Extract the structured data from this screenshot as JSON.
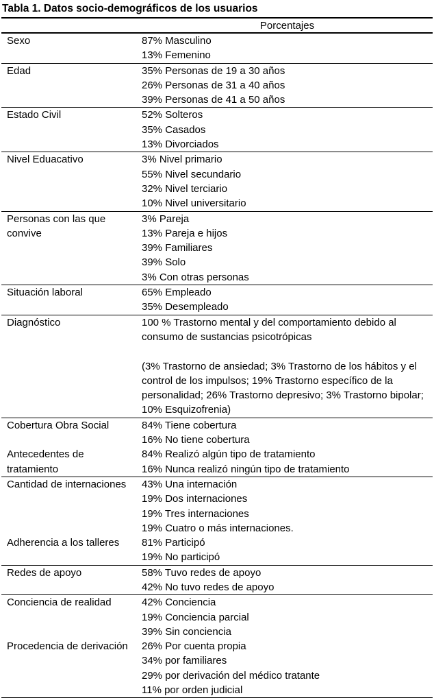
{
  "title": "Tabla 1. Datos socio-demográficos de los usuarios",
  "table": {
    "header": {
      "label": "",
      "value": "Porcentajes"
    },
    "sections": [
      {
        "groups": [
          {
            "label": "Sexo",
            "values": [
              "87% Masculino",
              "13% Femenino"
            ]
          }
        ]
      },
      {
        "groups": [
          {
            "label": "Edad",
            "values": [
              "35% Personas de 19 a 30 años",
              "26% Personas de 31 a 40 años",
              "39% Personas de 41 a 50 años"
            ]
          }
        ]
      },
      {
        "groups": [
          {
            "label": "Estado Civil",
            "values": [
              "52% Solteros",
              "35% Casados",
              "13% Divorciados"
            ]
          }
        ]
      },
      {
        "groups": [
          {
            "label": "Nivel Eduacativo",
            "values": [
              "3% Nivel primario",
              "55% Nivel secundario",
              "32% Nivel terciario",
              "10% Nivel universitario"
            ]
          }
        ]
      },
      {
        "groups": [
          {
            "label": "Personas con las que convive",
            "values": [
              "3% Pareja",
              "13% Pareja e hijos",
              "39% Familiares",
              "39% Solo",
              "3% Con otras personas"
            ]
          }
        ]
      },
      {
        "groups": [
          {
            "label": "Situación laboral",
            "values": [
              "65% Empleado",
              "35% Desempleado"
            ]
          }
        ]
      },
      {
        "groups": [
          {
            "label": "Diagnóstico",
            "values": [
              "100 % Trastorno mental y del comportamiento debido al consumo de sustancias psicotrópicas",
              "",
              "(3% Trastorno de ansiedad; 3% Trastorno de los hábitos y el control de los impulsos; 19% Trastorno específico de la personalidad; 26% Trastorno depresivo; 3% Trastorno bipolar; 10% Esquizofrenia)"
            ]
          }
        ]
      },
      {
        "groups": [
          {
            "label": "Cobertura Obra Social",
            "values": [
              "84% Tiene cobertura",
              "16% No tiene cobertura"
            ]
          },
          {
            "label": "Antecedentes de tratamiento",
            "values": [
              "84% Realizó algún tipo de tratamiento",
              "16% Nunca realizó ningún tipo de tratamiento"
            ]
          }
        ]
      },
      {
        "groups": [
          {
            "label": "Cantidad de internaciones",
            "values": [
              "43% Una internación",
              "19% Dos internaciones",
              "19% Tres internaciones",
              "19% Cuatro o más internaciones."
            ]
          },
          {
            "label": "Adherencia a los talleres",
            "values": [
              "81% Participó",
              "19% No participó"
            ]
          }
        ]
      },
      {
        "groups": [
          {
            "label": "Redes de apoyo",
            "values": [
              "58% Tuvo redes de apoyo",
              "42% No tuvo redes de apoyo"
            ]
          }
        ]
      },
      {
        "groups": [
          {
            "label": "Conciencia de realidad",
            "values": [
              "42% Conciencia",
              "19% Conciencia parcial",
              "39% Sin conciencia"
            ]
          },
          {
            "label": "Procedencia de derivación",
            "values": [
              "26% Por cuenta propia",
              "34% por familiares",
              "29% por derivación del médico tratante",
              "11% por orden judicial"
            ]
          }
        ]
      }
    ]
  }
}
